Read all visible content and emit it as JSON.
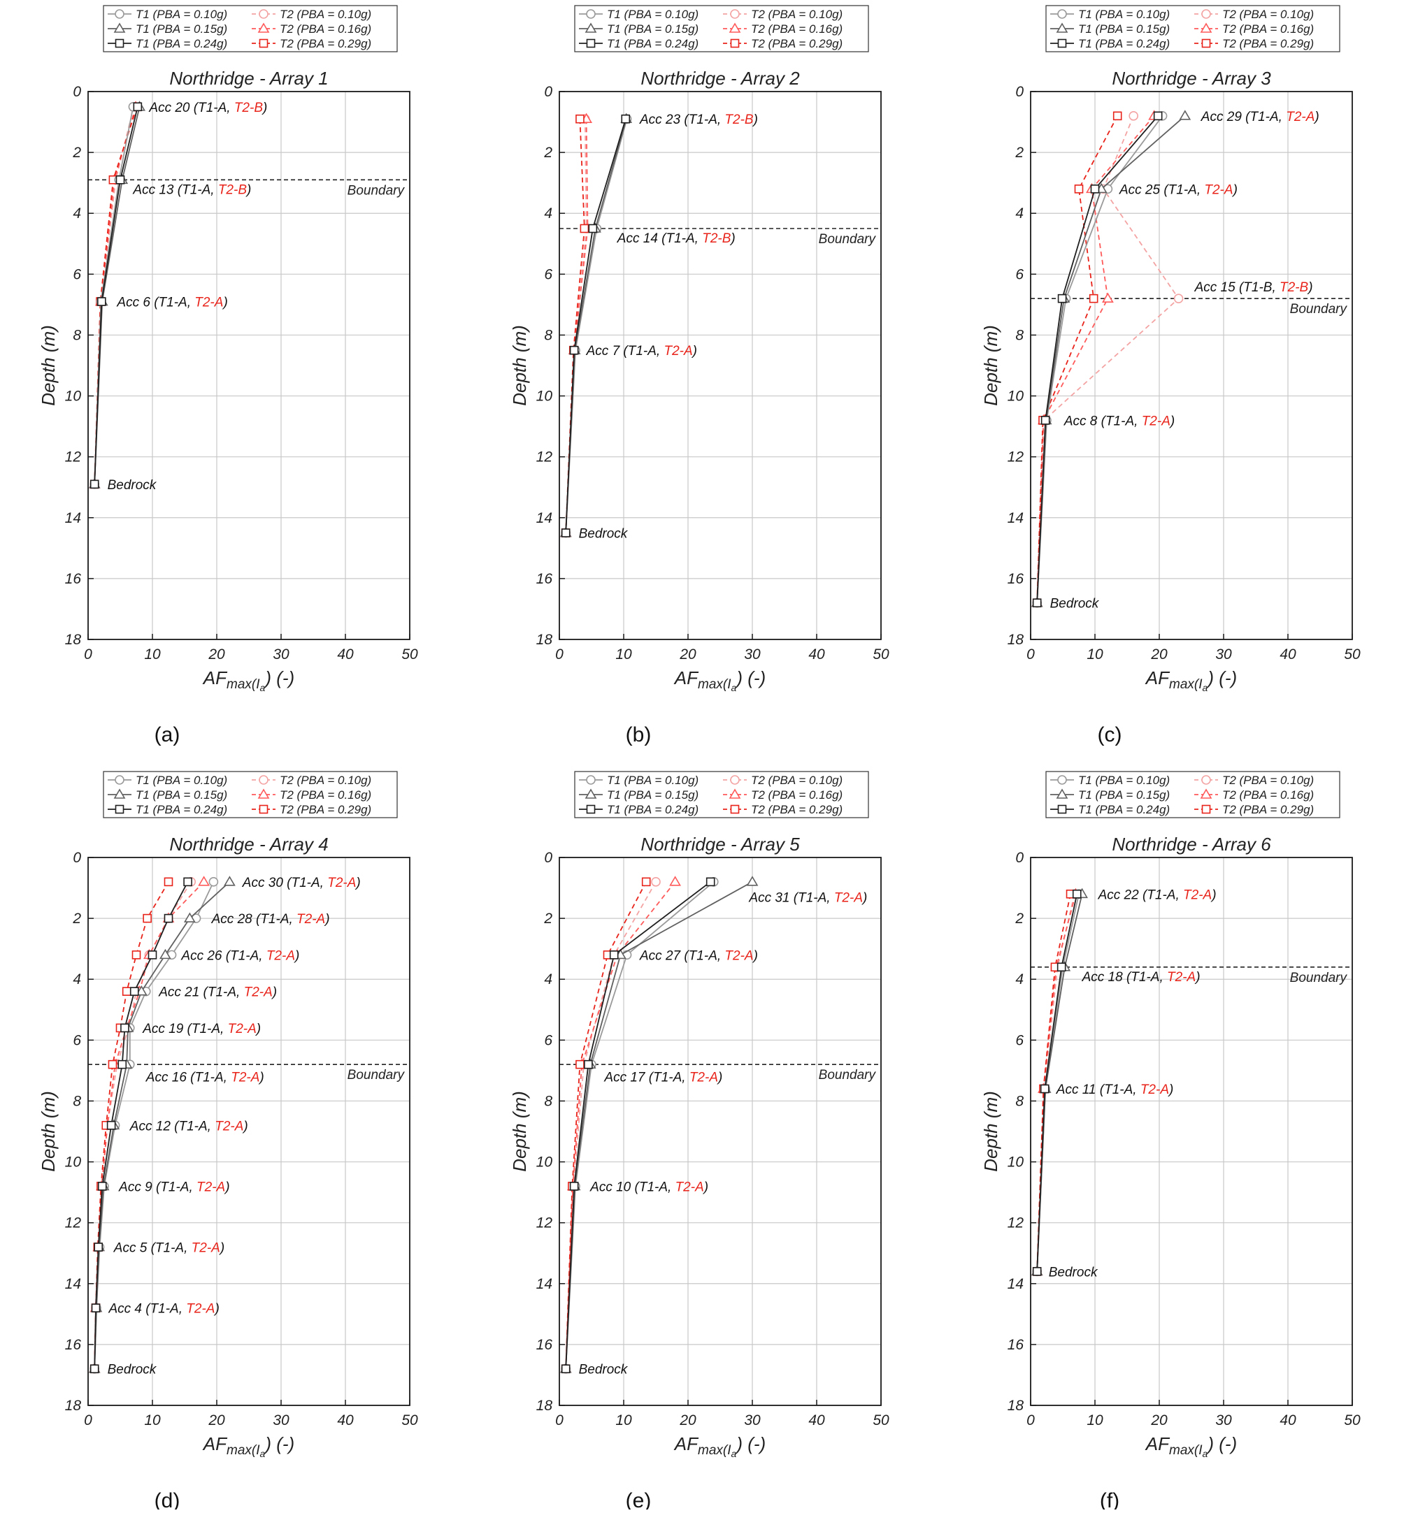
{
  "legend": {
    "entries": [
      {
        "label": "T1 (PBA = 0.10g)",
        "color": "#9a9a9a",
        "dash": false,
        "marker": "circle"
      },
      {
        "label": "T2 (PBA = 0.10g)",
        "color": "#f4a3a3",
        "dash": true,
        "marker": "circle"
      },
      {
        "label": "T1 (PBA = 0.15g)",
        "color": "#606060",
        "dash": false,
        "marker": "triangle"
      },
      {
        "label": "T2 (PBA = 0.16g)",
        "color": "#ff5a5a",
        "dash": true,
        "marker": "triangle"
      },
      {
        "label": "T1 (PBA = 0.24g)",
        "color": "#1f1f1f",
        "dash": false,
        "marker": "square"
      },
      {
        "label": "T2 (PBA = 0.29g)",
        "color": "#e8231a",
        "dash": true,
        "marker": "square"
      }
    ]
  },
  "colors": {
    "t1_text": "#111111",
    "t2_text": "#e8231a",
    "grid": "#c8c8c8",
    "boundary": "#222222"
  },
  "chart_data": [
    {
      "type": "line",
      "panel_label": "(a)",
      "title": "Northridge - Array 1",
      "xlabel": "AF",
      "xlabel_sub": "max(I",
      "xlabel_subsub": "a",
      "xlabel_tail": ") (-)",
      "ylabel": "Depth (m)",
      "xlim": [
        0,
        50
      ],
      "ylim": [
        0,
        18
      ],
      "y_inverted": true,
      "xticks": [
        0,
        10,
        20,
        30,
        40,
        50
      ],
      "yticks": [
        0,
        2,
        4,
        6,
        8,
        10,
        12,
        14,
        16,
        18
      ],
      "depths": [
        0.5,
        2.9,
        6.9,
        12.9
      ],
      "series": [
        {
          "name": "T1 (PBA = 0.10g)",
          "values": [
            7.0,
            4.8,
            2.0,
            1.0
          ]
        },
        {
          "name": "T1 (PBA = 0.15g)",
          "values": [
            8.0,
            5.3,
            2.2,
            1.0
          ]
        },
        {
          "name": "T1 (PBA = 0.24g)",
          "values": [
            7.7,
            5.0,
            2.1,
            1.0
          ]
        },
        {
          "name": "T2 (PBA = 0.10g)",
          "values": [
            7.1,
            4.3,
            2.0,
            1.0
          ]
        },
        {
          "name": "T2 (PBA = 0.16g)",
          "values": [
            7.4,
            4.1,
            2.0,
            1.0
          ]
        },
        {
          "name": "T2 (PBA = 0.29g)",
          "values": [
            7.6,
            3.9,
            1.9,
            1.0
          ]
        }
      ],
      "annotations": [
        {
          "acc": "Acc 20",
          "t1": "T1-A",
          "t2": "T2-B",
          "depth": 0.5,
          "x": 9.5
        },
        {
          "acc": "Acc 13",
          "t1": "T1-A",
          "t2": "T2-B",
          "depth": 3.2,
          "x": 7.0
        },
        {
          "acc": "Acc 6",
          "t1": "T1-A",
          "t2": "T2-A",
          "depth": 6.9,
          "x": 4.5
        }
      ],
      "bedrock": {
        "label": "Bedrock",
        "depth": 12.9,
        "x": 3.0
      },
      "boundary": {
        "label": "Boundary",
        "depth": 2.9
      }
    },
    {
      "type": "line",
      "panel_label": "(b)",
      "title": "Northridge - Array 2",
      "xlabel": "AF",
      "xlabel_sub": "max(I",
      "xlabel_subsub": "a",
      "xlabel_tail": ") (-)",
      "ylabel": "Depth (m)",
      "xlim": [
        0,
        50
      ],
      "ylim": [
        0,
        18
      ],
      "y_inverted": true,
      "xticks": [
        0,
        10,
        20,
        30,
        40,
        50
      ],
      "yticks": [
        0,
        2,
        4,
        6,
        8,
        10,
        12,
        14,
        16,
        18
      ],
      "depths": [
        0.9,
        4.5,
        8.5,
        14.5
      ],
      "series": [
        {
          "name": "T1 (PBA = 0.10g)",
          "values": [
            10.5,
            5.8,
            2.5,
            1.0
          ]
        },
        {
          "name": "T1 (PBA = 0.15g)",
          "values": [
            10.4,
            5.6,
            2.4,
            1.0
          ]
        },
        {
          "name": "T1 (PBA = 0.24g)",
          "values": [
            10.3,
            5.2,
            2.3,
            1.0
          ]
        },
        {
          "name": "T2 (PBA = 0.10g)",
          "values": [
            4.0,
            4.2,
            2.3,
            1.0
          ]
        },
        {
          "name": "T2 (PBA = 0.16g)",
          "values": [
            4.2,
            4.4,
            2.3,
            1.0
          ]
        },
        {
          "name": "T2 (PBA = 0.29g)",
          "values": [
            3.2,
            3.9,
            2.2,
            1.0
          ]
        }
      ],
      "annotations": [
        {
          "acc": "Acc 23",
          "t1": "T1-A",
          "t2": "T2-B",
          "depth": 0.9,
          "x": 12.5
        },
        {
          "acc": "Acc 14",
          "t1": "T1-A",
          "t2": "T2-B",
          "depth": 4.8,
          "x": 9.0
        },
        {
          "acc": "Acc 7",
          "t1": "T1-A",
          "t2": "T2-A",
          "depth": 8.5,
          "x": 4.2
        }
      ],
      "bedrock": {
        "label": "Bedrock",
        "depth": 14.5,
        "x": 3.0
      },
      "boundary": {
        "label": "Boundary",
        "depth": 4.5
      }
    },
    {
      "type": "line",
      "panel_label": "(c)",
      "title": "Northridge - Array 3",
      "xlabel": "AF",
      "xlabel_sub": "max(I",
      "xlabel_subsub": "a",
      "xlabel_tail": ") (-)",
      "ylabel": "Depth (m)",
      "xlim": [
        0,
        50
      ],
      "ylim": [
        0,
        18
      ],
      "y_inverted": true,
      "xticks": [
        0,
        10,
        20,
        30,
        40,
        50
      ],
      "yticks": [
        0,
        2,
        4,
        6,
        8,
        10,
        12,
        14,
        16,
        18
      ],
      "depths": [
        0.8,
        3.2,
        6.8,
        10.8,
        16.8
      ],
      "series": [
        {
          "name": "T1 (PBA = 0.10g)",
          "values": [
            20.5,
            12.0,
            5.5,
            2.5,
            1.0
          ]
        },
        {
          "name": "T1 (PBA = 0.15g)",
          "values": [
            24.0,
            11.0,
            5.2,
            2.4,
            1.0
          ]
        },
        {
          "name": "T1 (PBA = 0.24g)",
          "values": [
            19.8,
            10.0,
            4.9,
            2.3,
            1.0
          ]
        },
        {
          "name": "T2 (PBA = 0.10g)",
          "values": [
            16.0,
            11.3,
            23.0,
            2.1,
            1.0
          ]
        },
        {
          "name": "T2 (PBA = 0.16g)",
          "values": [
            19.2,
            9.5,
            12.0,
            2.0,
            1.0
          ]
        },
        {
          "name": "T2 (PBA = 0.29g)",
          "values": [
            13.5,
            7.5,
            9.8,
            1.9,
            1.0
          ]
        }
      ],
      "annotations": [
        {
          "acc": "Acc 29",
          "t1": "T1-A",
          "t2": "T2-A",
          "depth": 0.8,
          "x": 26.5
        },
        {
          "acc": "Acc 25",
          "t1": "T1-A",
          "t2": "T2-A",
          "depth": 3.2,
          "x": 13.8
        },
        {
          "acc": "Acc 15",
          "t1": "T1-B",
          "t2": "T2-B",
          "depth": 6.4,
          "x": 25.5
        },
        {
          "acc": "Acc 8",
          "t1": "T1-A",
          "t2": "T2-A",
          "depth": 10.8,
          "x": 5.2
        }
      ],
      "bedrock": {
        "label": "Bedrock",
        "depth": 16.8,
        "x": 3.0
      },
      "boundary": {
        "label": "Boundary",
        "depth": 6.8
      }
    },
    {
      "type": "line",
      "panel_label": "(d)",
      "title": "Northridge - Array 4",
      "xlabel": "AF",
      "xlabel_sub": "max(I",
      "xlabel_subsub": "a",
      "xlabel_tail": ") (-)",
      "ylabel": "Depth (m)",
      "xlim": [
        0,
        50
      ],
      "ylim": [
        0,
        18
      ],
      "y_inverted": true,
      "xticks": [
        0,
        10,
        20,
        30,
        40,
        50
      ],
      "yticks": [
        0,
        2,
        4,
        6,
        8,
        10,
        12,
        14,
        16,
        18
      ],
      "depths": [
        0.8,
        2.0,
        3.2,
        4.4,
        5.6,
        6.8,
        8.8,
        10.8,
        12.8,
        14.8,
        16.8
      ],
      "series": [
        {
          "name": "T1 (PBA = 0.10g)",
          "values": [
            19.5,
            16.8,
            13.0,
            9.0,
            6.5,
            6.5,
            4.2,
            2.5,
            1.8,
            1.3,
            1.0
          ]
        },
        {
          "name": "T1 (PBA = 0.15g)",
          "values": [
            22.0,
            15.8,
            12.0,
            8.3,
            6.2,
            6.0,
            4.0,
            2.4,
            1.7,
            1.3,
            1.0
          ]
        },
        {
          "name": "T1 (PBA = 0.24g)",
          "values": [
            15.5,
            12.5,
            10.0,
            7.2,
            5.7,
            5.3,
            3.6,
            2.2,
            1.6,
            1.2,
            1.0
          ]
        },
        {
          "name": "T2 (PBA = 0.10g)",
          "values": [
            16.0,
            12.5,
            9.5,
            7.5,
            6.3,
            4.5,
            3.0,
            2.2,
            1.6,
            1.2,
            1.0
          ]
        },
        {
          "name": "T2 (PBA = 0.16g)",
          "values": [
            18.0,
            12.5,
            9.5,
            8.0,
            6.0,
            4.2,
            3.0,
            2.1,
            1.6,
            1.2,
            1.0
          ]
        },
        {
          "name": "T2 (PBA = 0.29g)",
          "values": [
            12.5,
            9.2,
            7.5,
            6.0,
            5.0,
            3.8,
            2.8,
            2.0,
            1.5,
            1.2,
            1.0
          ]
        }
      ],
      "annotations": [
        {
          "acc": "Acc 30",
          "t1": "T1-A",
          "t2": "T2-A",
          "depth": 0.8,
          "x": 24.0
        },
        {
          "acc": "Acc 28",
          "t1": "T1-A",
          "t2": "T2-A",
          "depth": 2.0,
          "x": 19.2
        },
        {
          "acc": "Acc 26",
          "t1": "T1-A",
          "t2": "T2-A",
          "depth": 3.2,
          "x": 14.5
        },
        {
          "acc": "Acc 21",
          "t1": "T1-A",
          "t2": "T2-A",
          "depth": 4.4,
          "x": 11.0
        },
        {
          "acc": "Acc 19",
          "t1": "T1-A",
          "t2": "T2-A",
          "depth": 5.6,
          "x": 8.5
        },
        {
          "acc": "Acc 16",
          "t1": "T1-A",
          "t2": "T2-A",
          "depth": 7.2,
          "x": 9.0
        },
        {
          "acc": "Acc 12",
          "t1": "T1-A",
          "t2": "T2-A",
          "depth": 8.8,
          "x": 6.5
        },
        {
          "acc": "Acc 9",
          "t1": "T1-A",
          "t2": "T2-A",
          "depth": 10.8,
          "x": 4.8
        },
        {
          "acc": "Acc 5",
          "t1": "T1-A",
          "t2": "T2-A",
          "depth": 12.8,
          "x": 4.0
        },
        {
          "acc": "Acc 4",
          "t1": "T1-A",
          "t2": "T2-A",
          "depth": 14.8,
          "x": 3.2
        }
      ],
      "bedrock": {
        "label": "Bedrock",
        "depth": 16.8,
        "x": 3.0
      },
      "boundary": {
        "label": "Boundary",
        "depth": 6.8
      }
    },
    {
      "type": "line",
      "panel_label": "(e)",
      "title": "Northridge - Array 5",
      "xlabel": "AF",
      "xlabel_sub": "max(I",
      "xlabel_subsub": "a",
      "xlabel_tail": ") (-)",
      "ylabel": "Depth (m)",
      "xlim": [
        0,
        50
      ],
      "ylim": [
        0,
        18
      ],
      "y_inverted": true,
      "xticks": [
        0,
        10,
        20,
        30,
        40,
        50
      ],
      "yticks": [
        0,
        2,
        4,
        6,
        8,
        10,
        12,
        14,
        16,
        18
      ],
      "depths": [
        0.8,
        3.2,
        6.8,
        10.8,
        16.8
      ],
      "series": [
        {
          "name": "T1 (PBA = 0.10g)",
          "values": [
            24.0,
            10.5,
            5.0,
            2.5,
            1.0
          ]
        },
        {
          "name": "T1 (PBA = 0.15g)",
          "values": [
            30.0,
            9.5,
            4.8,
            2.4,
            1.0
          ]
        },
        {
          "name": "T1 (PBA = 0.24g)",
          "values": [
            23.5,
            8.5,
            4.5,
            2.3,
            1.0
          ]
        },
        {
          "name": "T2 (PBA = 0.10g)",
          "values": [
            15.0,
            8.5,
            3.8,
            2.2,
            1.0
          ]
        },
        {
          "name": "T2 (PBA = 0.16g)",
          "values": [
            18.0,
            9.0,
            3.5,
            2.1,
            1.0
          ]
        },
        {
          "name": "T2 (PBA = 0.29g)",
          "values": [
            13.5,
            7.5,
            3.2,
            2.0,
            1.0
          ]
        }
      ],
      "annotations": [
        {
          "acc": "Acc 31",
          "t1": "T1-A",
          "t2": "T2-A",
          "depth": 1.3,
          "x": 29.5
        },
        {
          "acc": "Acc 27",
          "t1": "T1-A",
          "t2": "T2-A",
          "depth": 3.2,
          "x": 12.5
        },
        {
          "acc": "Acc 17",
          "t1": "T1-A",
          "t2": "T2-A",
          "depth": 7.2,
          "x": 7.0
        },
        {
          "acc": "Acc 10",
          "t1": "T1-A",
          "t2": "T2-A",
          "depth": 10.8,
          "x": 4.8
        }
      ],
      "bedrock": {
        "label": "Bedrock",
        "depth": 16.8,
        "x": 3.0
      },
      "boundary": {
        "label": "Boundary",
        "depth": 6.8
      }
    },
    {
      "type": "line",
      "panel_label": "(f)",
      "title": "Northridge - Array 6",
      "xlabel": "AF",
      "xlabel_sub": "max(I",
      "xlabel_subsub": "a",
      "xlabel_tail": ") (-)",
      "ylabel": "Depth (m)",
      "xlim": [
        0,
        50
      ],
      "ylim": [
        0,
        18
      ],
      "y_inverted": true,
      "xticks": [
        0,
        10,
        20,
        30,
        40,
        50
      ],
      "yticks": [
        0,
        2,
        4,
        6,
        8,
        10,
        12,
        14,
        16,
        18
      ],
      "depths": [
        1.2,
        3.6,
        7.6,
        13.6
      ],
      "series": [
        {
          "name": "T1 (PBA = 0.10g)",
          "values": [
            7.5,
            5.0,
            2.3,
            1.0
          ]
        },
        {
          "name": "T1 (PBA = 0.15g)",
          "values": [
            8.0,
            5.3,
            2.3,
            1.0
          ]
        },
        {
          "name": "T1 (PBA = 0.24g)",
          "values": [
            7.2,
            4.8,
            2.2,
            1.0
          ]
        },
        {
          "name": "T2 (PBA = 0.10g)",
          "values": [
            6.8,
            4.2,
            2.1,
            1.0
          ]
        },
        {
          "name": "T2 (PBA = 0.16g)",
          "values": [
            7.0,
            4.0,
            2.0,
            1.0
          ]
        },
        {
          "name": "T2 (PBA = 0.29g)",
          "values": [
            6.2,
            3.8,
            2.0,
            1.0
          ]
        }
      ],
      "annotations": [
        {
          "acc": "Acc 22",
          "t1": "T1-A",
          "t2": "T2-A",
          "depth": 1.2,
          "x": 10.5
        },
        {
          "acc": "Acc 18",
          "t1": "T1-A",
          "t2": "T2-A",
          "depth": 3.9,
          "x": 8.0
        },
        {
          "acc": "Acc 11",
          "t1": "T1-A",
          "t2": "T2-A",
          "depth": 7.6,
          "x": 4.0
        }
      ],
      "bedrock": {
        "label": "Bedrock",
        "depth": 13.6,
        "x": 2.8
      },
      "boundary": {
        "label": "Boundary",
        "depth": 3.6
      }
    }
  ]
}
